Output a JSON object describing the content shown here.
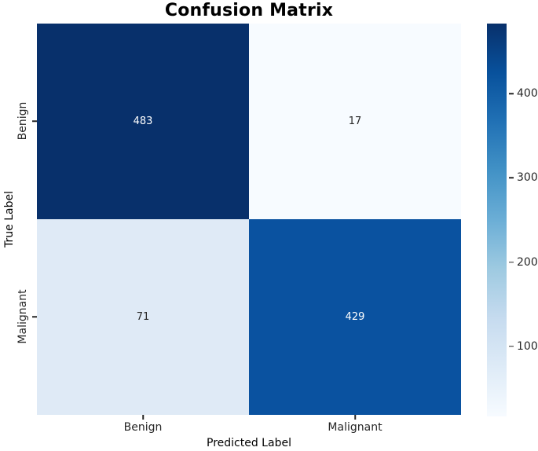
{
  "chart_data": {
    "type": "heatmap",
    "title": "Confusion Matrix",
    "xlabel": "Predicted Label",
    "ylabel": "True Label",
    "x_categories": [
      "Benign",
      "Malignant"
    ],
    "y_categories": [
      "Benign",
      "Malignant"
    ],
    "matrix": [
      [
        483,
        17
      ],
      [
        71,
        429
      ]
    ],
    "cells": [
      {
        "row": "Benign",
        "col": "Benign",
        "value": "483",
        "bg": "#08306b",
        "fg": "#ffffff"
      },
      {
        "row": "Benign",
        "col": "Malignant",
        "value": "17",
        "bg": "#f7fbff",
        "fg": "#262626"
      },
      {
        "row": "Malignant",
        "col": "Benign",
        "value": "71",
        "bg": "#dfeaf6",
        "fg": "#262626"
      },
      {
        "row": "Malignant",
        "col": "Malignant",
        "value": "429",
        "bg": "#0a52a0",
        "fg": "#ffffff"
      }
    ],
    "colormap": "Blues",
    "vmin": 17,
    "vmax": 483,
    "grid": false,
    "legend_position": "colorbar-right",
    "colorbar": {
      "ticks": [
        100,
        200,
        300,
        400
      ],
      "gradient_stops": [
        "#f7fbff",
        "#deebf7",
        "#c6dbef",
        "#9ecae1",
        "#6baed6",
        "#4292c6",
        "#2171b5",
        "#08519c",
        "#08306b"
      ]
    }
  }
}
